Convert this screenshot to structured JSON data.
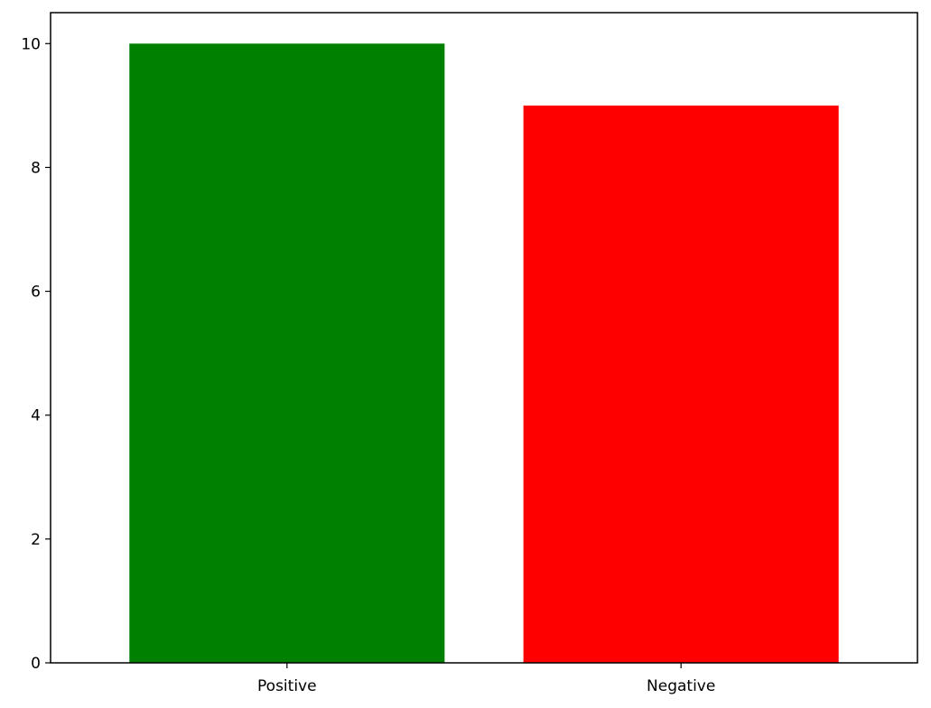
{
  "chart_data": {
    "type": "bar",
    "categories": [
      "Positive",
      "Negative"
    ],
    "values": [
      10,
      9
    ],
    "colors": [
      "#008000",
      "#ff0000"
    ],
    "title": "",
    "xlabel": "",
    "ylabel": "",
    "ylim": [
      0,
      10.5
    ],
    "yticks": [
      0,
      2,
      4,
      6,
      8,
      10
    ],
    "grid": false,
    "legend": "none"
  }
}
